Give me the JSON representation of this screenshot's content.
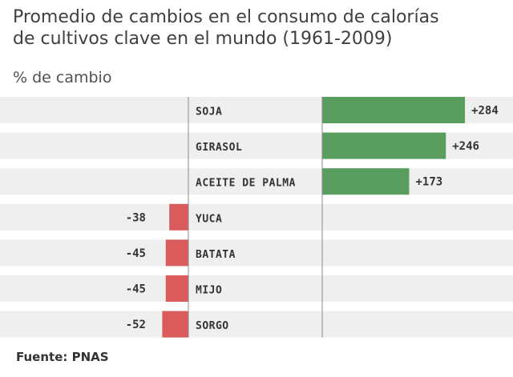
{
  "chart_data": {
    "type": "bar",
    "orientation": "horizontal",
    "title": "Promedio de cambios en el consumo de calorías de cultivos clave en el mundo (1961-2009)",
    "title_lines": [
      "Promedio de cambios en el consumo de calorías",
      "de cultivos clave en el mundo (1961-2009)"
    ],
    "ylabel": "% de cambio",
    "categories": [
      "SOJA",
      "GIRASOL",
      "ACEITE DE PALMA",
      "YUCA",
      "BATATA",
      "MIJO",
      "SORGO"
    ],
    "values": [
      284,
      246,
      173,
      -38,
      -45,
      -45,
      -52
    ],
    "value_labels": [
      "+284",
      "+246",
      "+173",
      "-38",
      "-45",
      "-45",
      "-52"
    ],
    "colors": {
      "positive": "#5a9e5f",
      "negative": "#d95b5b",
      "band": "#efefef",
      "axis": "#888888"
    },
    "source": "Fuente: PNAS"
  }
}
